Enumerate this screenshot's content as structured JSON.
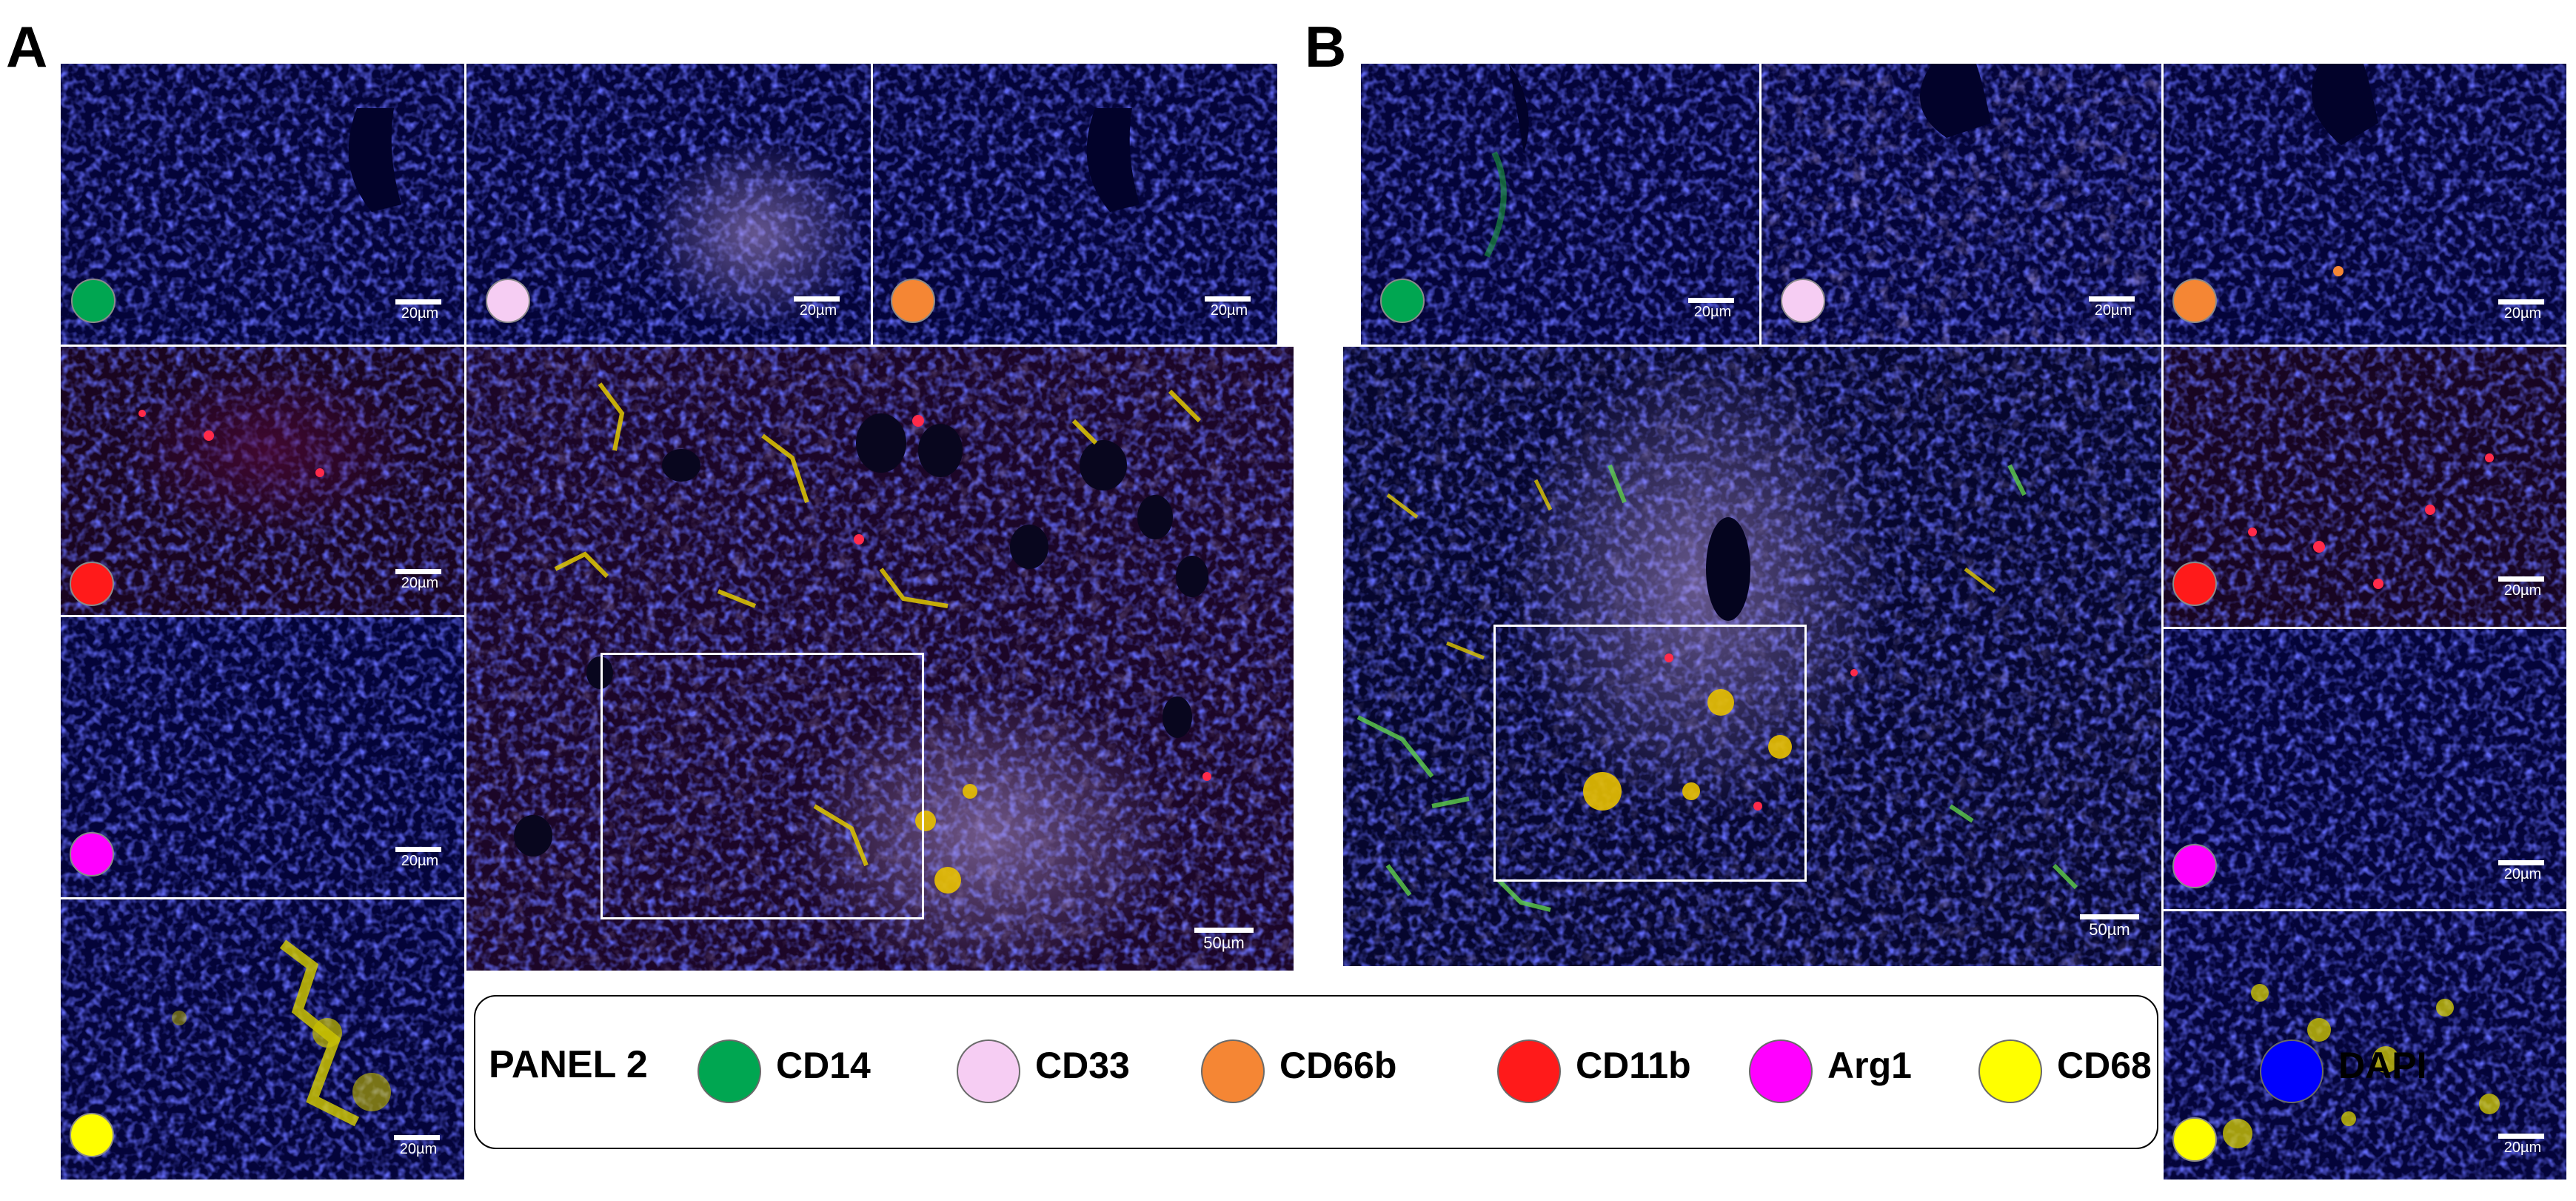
{
  "panels": {
    "A": {
      "letter": "A"
    },
    "B": {
      "letter": "B"
    }
  },
  "tiles": {
    "scale_small": "20µm",
    "scale_large": "50µm"
  },
  "markers": {
    "CD14": "#00a651",
    "CD33": "#f6cdf3",
    "CD66b": "#f58634",
    "CD11b": "#ff1a1a",
    "Arg1": "#ff00ff",
    "CD68": "#ffff00",
    "DAPI": "#0000ff"
  },
  "legend": {
    "title": "PANEL  2",
    "items": [
      {
        "label": "CD14",
        "color": "#00a651"
      },
      {
        "label": "CD33",
        "color": "#f6cdf3"
      },
      {
        "label": "CD66b",
        "color": "#f58634"
      },
      {
        "label": "CD11b",
        "color": "#ff1a1a"
      },
      {
        "label": "Arg1",
        "color": "#ff00ff"
      },
      {
        "label": "CD68",
        "color": "#ffff00"
      },
      {
        "label": "DAPI",
        "color": "#0000ff"
      }
    ]
  }
}
